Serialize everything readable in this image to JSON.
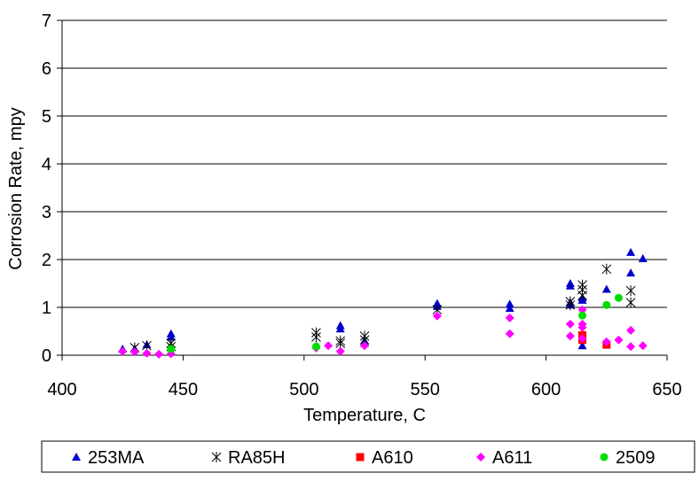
{
  "chart_data": {
    "type": "scatter",
    "title": "",
    "xlabel": "Temperature, C",
    "ylabel": "Corrosion Rate, mpy",
    "xlim": [
      400,
      650
    ],
    "ylim": [
      0,
      7
    ],
    "xticks": [
      "400",
      "450",
      "500",
      "550",
      "600",
      "650"
    ],
    "yticks": [
      "0",
      "1",
      "2",
      "3",
      "4",
      "5",
      "6",
      "7"
    ],
    "grid": "horizontal major gridlines",
    "legend_position": "bottom",
    "series": [
      {
        "name": "253MA",
        "marker": "triangle",
        "color": "#0000cc",
        "points": [
          [
            425,
            0.13
          ],
          [
            430,
            0.13
          ],
          [
            435,
            0.22
          ],
          [
            445,
            0.45
          ],
          [
            445,
            0.38
          ],
          [
            515,
            0.62
          ],
          [
            515,
            0.55
          ],
          [
            525,
            0.3
          ],
          [
            525,
            0.25
          ],
          [
            555,
            1.08
          ],
          [
            555,
            1.02
          ],
          [
            585,
            1.07
          ],
          [
            585,
            0.98
          ],
          [
            610,
            1.5
          ],
          [
            610,
            1.45
          ],
          [
            610,
            1.1
          ],
          [
            610,
            1.05
          ],
          [
            615,
            1.2
          ],
          [
            615,
            1.15
          ],
          [
            615,
            0.2
          ],
          [
            625,
            1.38
          ],
          [
            635,
            2.15
          ],
          [
            635,
            1.72
          ],
          [
            640,
            2.02
          ]
        ]
      },
      {
        "name": "RA85H",
        "marker": "asterisk",
        "color": "#000000",
        "points": [
          [
            430,
            0.16
          ],
          [
            435,
            0.2
          ],
          [
            445,
            0.25
          ],
          [
            445,
            0.18
          ],
          [
            505,
            0.47
          ],
          [
            505,
            0.38
          ],
          [
            515,
            0.3
          ],
          [
            515,
            0.25
          ],
          [
            525,
            0.4
          ],
          [
            525,
            0.32
          ],
          [
            555,
            0.95
          ],
          [
            610,
            1.12
          ],
          [
            610,
            1.05
          ],
          [
            615,
            1.47
          ],
          [
            615,
            1.37
          ],
          [
            615,
            1.25
          ],
          [
            625,
            1.8
          ],
          [
            635,
            1.35
          ],
          [
            635,
            1.1
          ]
        ]
      },
      {
        "name": "A610",
        "marker": "square",
        "color": "#ff0000",
        "points": [
          [
            615,
            0.42
          ],
          [
            615,
            0.32
          ],
          [
            625,
            0.22
          ]
        ]
      },
      {
        "name": "A611",
        "marker": "diamond",
        "color": "#ff00ff",
        "points": [
          [
            425,
            0.08
          ],
          [
            430,
            0.07
          ],
          [
            435,
            0.04
          ],
          [
            440,
            0.02
          ],
          [
            445,
            0.03
          ],
          [
            505,
            0.15
          ],
          [
            510,
            0.2
          ],
          [
            515,
            0.08
          ],
          [
            525,
            0.2
          ],
          [
            555,
            0.82
          ],
          [
            585,
            0.78
          ],
          [
            585,
            0.45
          ],
          [
            610,
            0.65
          ],
          [
            610,
            0.4
          ],
          [
            615,
            0.95
          ],
          [
            615,
            0.65
          ],
          [
            615,
            0.58
          ],
          [
            615,
            0.35
          ],
          [
            625,
            0.28
          ],
          [
            630,
            0.32
          ],
          [
            635,
            0.52
          ],
          [
            635,
            0.18
          ],
          [
            640,
            0.2
          ]
        ]
      },
      {
        "name": "2509",
        "marker": "circle",
        "color": "#00dd00",
        "points": [
          [
            445,
            0.13
          ],
          [
            505,
            0.18
          ],
          [
            615,
            0.83
          ],
          [
            625,
            1.05
          ],
          [
            630,
            1.2
          ]
        ]
      }
    ]
  }
}
